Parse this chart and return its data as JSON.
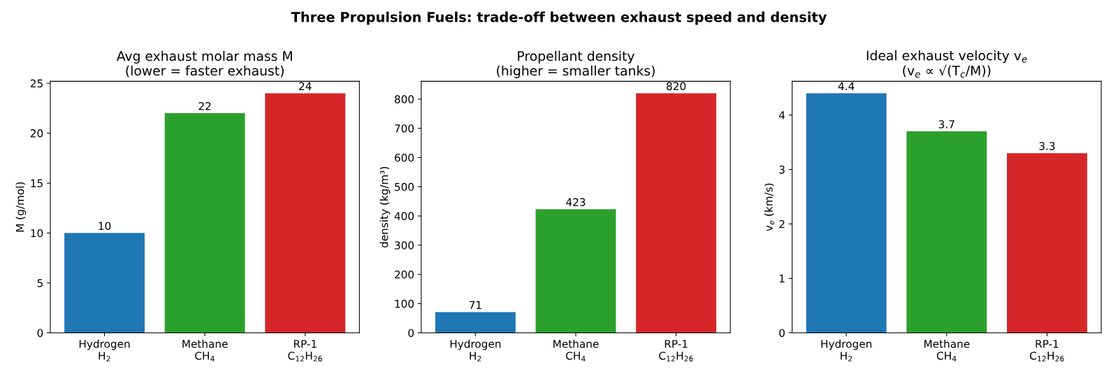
{
  "chart_data": [
    {
      "type": "bar",
      "title": "Avg exhaust molar mass M\n(lower = faster exhaust)",
      "ylabel": "M (g/mol)",
      "annotations": [
        "Three Propulsion Fuels: trade-off between exhaust speed and density"
      ],
      "categories": [
        "Hydrogen\nH$_{2}$",
        "Methane\nCH$_{4}$",
        "RP-1\nC$_{12}$H$_{26}$"
      ],
      "values": [
        10,
        22,
        24
      ],
      "colors": [
        "#1f77b4",
        "#2ca02c",
        "#d62728"
      ],
      "ylim": [
        0,
        25.2
      ],
      "yticks": [
        0,
        5,
        10,
        15,
        20,
        25
      ],
      "data_labels": true,
      "grid": false,
      "legend": false
    },
    {
      "type": "bar",
      "title": "Propellant density\n(higher = smaller tanks)",
      "ylabel": "density (kg/m³)",
      "categories": [
        "Hydrogen\nH$_{2}$",
        "Methane\nCH$_{4}$",
        "RP-1\nC$_{12}$H$_{26}$"
      ],
      "values": [
        71,
        423,
        820
      ],
      "colors": [
        "#1f77b4",
        "#2ca02c",
        "#d62728"
      ],
      "ylim": [
        0,
        861
      ],
      "yticks": [
        0,
        100,
        200,
        300,
        400,
        500,
        600,
        700,
        800
      ],
      "data_labels": true,
      "grid": false,
      "legend": false
    },
    {
      "type": "bar",
      "title": "Ideal exhaust velocity v$_{e}$\n(v$_{e}$ ∝ √(T$_{c}$/M))",
      "ylabel": "v$_{e}$ (km/s)",
      "categories": [
        "Hydrogen\nH$_{2}$",
        "Methane\nCH$_{4}$",
        "RP-1\nC$_{12}$H$_{26}$"
      ],
      "values": [
        4.4,
        3.7,
        3.3
      ],
      "colors": [
        "#1f77b4",
        "#2ca02c",
        "#d62728"
      ],
      "ylim": [
        0,
        4.62
      ],
      "yticks": [
        0,
        1,
        2,
        3,
        4
      ],
      "data_labels": true,
      "grid": false,
      "legend": false
    }
  ]
}
